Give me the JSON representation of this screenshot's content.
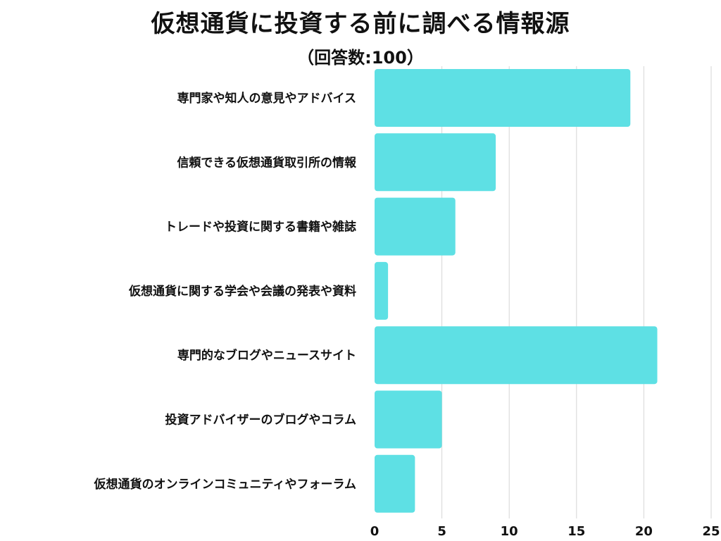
{
  "chart_data": {
    "type": "bar",
    "orientation": "horizontal",
    "title": "仮想通貨に投資する前に調べる情報源",
    "subtitle": "（回答数:100）",
    "categories": [
      "専門家や知人の意見やアドバイス",
      "信頼できる仮想通貨取引所の情報",
      "トレードや投資に関する書籍や雑誌",
      "仮想通貨に関する学会や会議の発表や資料",
      "専門的なブログやニュースサイト",
      "投資アドバイザーのブログやコラム",
      "仮想通貨のオンラインコミュニティやフォーラム"
    ],
    "values": [
      19,
      9,
      6,
      1,
      21,
      5,
      3
    ],
    "xlim": [
      0,
      25
    ],
    "xticks": [
      "0",
      "5",
      "10",
      "15",
      "20",
      "25"
    ],
    "grid": true,
    "bar_color": "#5ee0e4",
    "grid_color": "#d6d6d6"
  }
}
